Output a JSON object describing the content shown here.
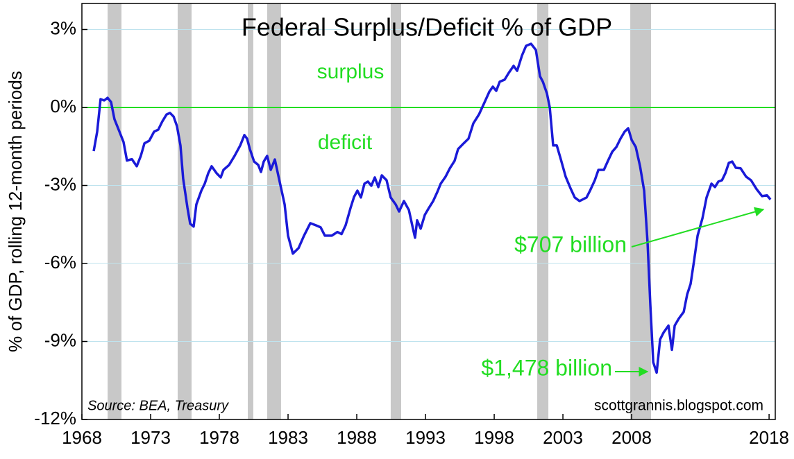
{
  "chart_data": {
    "type": "line",
    "title": "Federal Surplus/Deficit % of GDP",
    "y_label": "% of GDP, rolling 12-month periods",
    "source": "Source:  BEA, Treasury",
    "watermark": "scottgrannis.blogspot.com",
    "annotations": [
      "surplus",
      "deficit",
      "$707 billion",
      "$1,478 billion"
    ],
    "xlim": [
      1968,
      2018.45
    ],
    "xticks": [
      1968,
      1973,
      1978,
      1983,
      1988,
      1993,
      1998,
      2003,
      2008,
      2018
    ],
    "ylim": [
      -12,
      4
    ],
    "yticks": [
      {
        "value": 3,
        "label": "3%"
      },
      {
        "value": 0,
        "label": "0%"
      },
      {
        "value": -3,
        "label": "-3%"
      },
      {
        "value": -6,
        "label": "-6%"
      },
      {
        "value": -9,
        "label": "-9%"
      },
      {
        "value": -12,
        "label": "-12%"
      }
    ],
    "grid": true,
    "zero_line_color": "#22dd22",
    "shaded_periods": [
      [
        1969.87,
        1970.88
      ],
      [
        1974.97,
        1975.98
      ],
      [
        1980.07,
        1980.47
      ],
      [
        1981.48,
        1982.49
      ],
      [
        1990.47,
        1991.23
      ],
      [
        2001.13,
        2001.94
      ],
      [
        2007.9,
        2009.41
      ]
    ],
    "shade_color": "#c8c8c8",
    "x": [
      1968.86,
      1969.11,
      1969.36,
      1969.62,
      1969.87,
      1970.12,
      1970.37,
      1970.73,
      1971.03,
      1971.28,
      1971.64,
      1971.99,
      1972.29,
      1972.55,
      1972.9,
      1973.25,
      1973.56,
      1973.86,
      1974.16,
      1974.41,
      1974.67,
      1974.92,
      1975.17,
      1975.37,
      1975.68,
      1975.88,
      1976.13,
      1976.33,
      1976.69,
      1976.94,
      1977.19,
      1977.44,
      1977.8,
      1978.1,
      1978.3,
      1978.71,
      1979.11,
      1979.52,
      1979.82,
      1980.02,
      1980.22,
      1980.53,
      1980.83,
      1981.03,
      1981.23,
      1981.48,
      1981.74,
      1982.04,
      1982.34,
      1982.75,
      1983.0,
      1983.35,
      1983.76,
      1984.16,
      1984.62,
      1985.02,
      1985.37,
      1985.68,
      1986.18,
      1986.59,
      1986.89,
      1987.19,
      1987.55,
      1987.8,
      1988.05,
      1988.3,
      1988.56,
      1988.81,
      1989.06,
      1989.31,
      1989.57,
      1989.82,
      1990.17,
      1990.47,
      1990.83,
      1991.08,
      1991.43,
      1991.79,
      1992.09,
      1992.24,
      1992.39,
      1992.65,
      1992.95,
      1993.25,
      1993.56,
      1993.86,
      1994.11,
      1994.46,
      1994.77,
      1995.12,
      1995.37,
      1995.78,
      1996.13,
      1996.48,
      1996.89,
      1997.29,
      1997.65,
      1997.9,
      1998.15,
      1998.4,
      1998.76,
      1999.06,
      1999.41,
      1999.67,
      2000.02,
      2000.32,
      2000.68,
      2001.03,
      2001.33,
      2001.54,
      2001.84,
      2002.04,
      2002.29,
      2002.55,
      2002.85,
      2003.2,
      2003.56,
      2003.86,
      2004.21,
      2004.72,
      2004.97,
      2005.32,
      2005.58,
      2005.98,
      2006.28,
      2006.59,
      2006.89,
      2007.19,
      2007.49,
      2007.75,
      2008.0,
      2008.3,
      2008.61,
      2008.91,
      2009.16,
      2009.36,
      2009.57,
      2009.82,
      2010.07,
      2010.32,
      2010.68,
      2010.93,
      2011.13,
      2011.43,
      2011.79,
      2012.04,
      2012.29,
      2012.55,
      2012.8,
      2013.15,
      2013.45,
      2013.81,
      2014.06,
      2014.31,
      2014.57,
      2014.82,
      2015.07,
      2015.32,
      2015.58,
      2015.93,
      2016.33,
      2016.69,
      2017.09,
      2017.49,
      2017.85,
      2018.1
    ],
    "series": [
      {
        "name": "Federal Surplus/Deficit % of GDP",
        "color": "#1a1ad8",
        "values": [
          -1.68,
          -0.93,
          0.32,
          0.27,
          0.37,
          0.21,
          -0.45,
          -0.93,
          -1.33,
          -2.04,
          -1.99,
          -2.26,
          -1.86,
          -1.38,
          -1.28,
          -0.93,
          -0.85,
          -0.53,
          -0.27,
          -0.21,
          -0.35,
          -0.72,
          -1.46,
          -2.74,
          -3.86,
          -4.47,
          -4.58,
          -3.73,
          -3.2,
          -2.93,
          -2.53,
          -2.26,
          -2.53,
          -2.69,
          -2.4,
          -2.21,
          -1.86,
          -1.46,
          -1.06,
          -1.2,
          -1.6,
          -2.08,
          -2.21,
          -2.48,
          -2.08,
          -1.86,
          -2.4,
          -2.0,
          -2.74,
          -3.73,
          -4.93,
          -5.62,
          -5.41,
          -4.93,
          -4.45,
          -4.53,
          -4.61,
          -4.93,
          -4.93,
          -4.79,
          -4.87,
          -4.53,
          -3.86,
          -3.44,
          -3.2,
          -3.46,
          -2.93,
          -2.85,
          -3.01,
          -2.69,
          -3.06,
          -2.61,
          -2.8,
          -3.46,
          -3.73,
          -4.0,
          -3.6,
          -3.94,
          -4.66,
          -5.01,
          -4.34,
          -4.66,
          -4.13,
          -3.86,
          -3.6,
          -3.25,
          -2.93,
          -2.66,
          -2.34,
          -2.05,
          -1.6,
          -1.38,
          -1.2,
          -0.61,
          -0.27,
          0.19,
          0.61,
          0.8,
          0.64,
          0.99,
          1.07,
          1.33,
          1.6,
          1.41,
          2.0,
          2.37,
          2.45,
          2.21,
          1.2,
          0.99,
          0.53,
          0.0,
          -1.46,
          -1.46,
          -2.0,
          -2.66,
          -3.12,
          -3.46,
          -3.6,
          -3.46,
          -3.2,
          -2.8,
          -2.4,
          -2.4,
          -2.05,
          -1.7,
          -1.52,
          -1.2,
          -0.93,
          -0.8,
          -1.25,
          -1.52,
          -2.26,
          -3.2,
          -5.19,
          -7.59,
          -9.8,
          -10.2,
          -8.92,
          -8.66,
          -8.39,
          -9.32,
          -8.39,
          -8.12,
          -7.86,
          -7.19,
          -6.79,
          -5.86,
          -4.93,
          -4.26,
          -3.46,
          -2.93,
          -3.06,
          -2.85,
          -2.8,
          -2.53,
          -2.13,
          -2.08,
          -2.32,
          -2.34,
          -2.66,
          -2.8,
          -3.14,
          -3.41,
          -3.38,
          -3.54
        ]
      }
    ]
  }
}
